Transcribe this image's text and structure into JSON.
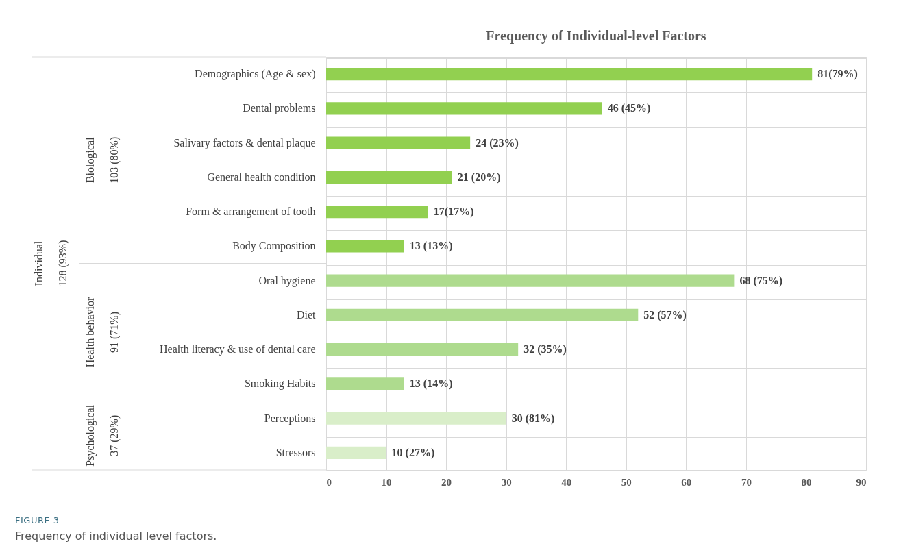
{
  "chart_data": {
    "type": "bar",
    "orientation": "horizontal",
    "title": "Frequency of Individual-level Factors",
    "categories": [
      "Demographics (Age & sex)",
      "Dental problems",
      "Salivary factors  & dental plaque",
      "General health condition",
      "Form & arrangement of tooth",
      "Body Composition",
      "Oral hygiene",
      "Diet",
      "Health literacy & use of dental care",
      "Smoking Habits",
      "Perceptions",
      "Stressors"
    ],
    "values": [
      81,
      46,
      24,
      21,
      17,
      13,
      68,
      52,
      32,
      13,
      30,
      10
    ],
    "colors": [
      "#92d050",
      "#92d050",
      "#92d050",
      "#92d050",
      "#92d050",
      "#92d050",
      "#aedb8e",
      "#aedb8e",
      "#aedb8e",
      "#aedb8e",
      "#d9eec9",
      "#d9eec9"
    ],
    "value_labels": [
      "81(79%)",
      "46  (45%)",
      "24 (23%)",
      "21 (20%)",
      "17(17%)",
      "13 (13%)",
      "68  (75%)",
      "52 (57%)",
      "32  (35%)",
      "13  (14%)",
      "30 (81%)",
      "10   (27%)"
    ],
    "xlim": [
      0,
      90
    ],
    "xticks": [
      0,
      10,
      20,
      30,
      40,
      50,
      60,
      70,
      80,
      90
    ],
    "grid": true,
    "annotations": [
      "Individual",
      "128 (93%)",
      "Biological",
      "103 (80%)",
      "Health behavior",
      "91 (71%)",
      "Psychological",
      "37 (29%)",
      "FIGURE 3",
      "Frequency of individual level factors."
    ]
  }
}
